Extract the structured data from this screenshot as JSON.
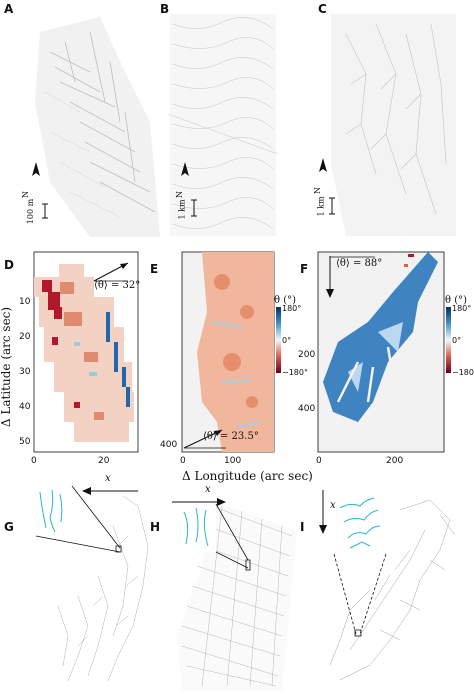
{
  "panels": {
    "A": {
      "label": "A",
      "scale": "100 m",
      "north": "N"
    },
    "B": {
      "label": "B",
      "scale": "1 km",
      "north": "N"
    },
    "C": {
      "label": "C",
      "scale": "1 km",
      "north": "N"
    },
    "D": {
      "label": "D",
      "theta": "⟨θ⟩ = 32°",
      "xticks": [
        "0",
        "20"
      ],
      "yticks": [
        "10",
        "20",
        "30",
        "40",
        "50"
      ]
    },
    "E": {
      "label": "E",
      "theta": "⟨θ⟩ = 23.5°",
      "xticks": [
        "0",
        "100"
      ],
      "yticks": [
        "400"
      ]
    },
    "F": {
      "label": "F",
      "theta": "⟨θ⟩ = 88°",
      "xticks": [
        "0",
        "200"
      ],
      "yticks": [
        "200",
        "400"
      ]
    },
    "G": {
      "label": "G",
      "axis": "x"
    },
    "H": {
      "label": "H",
      "axis": "x"
    },
    "I": {
      "label": "I",
      "axis": "x"
    }
  },
  "axes": {
    "ylabel": "Δ Latitude (arc sec)",
    "xlabel": "Δ Longitude (arc sec)"
  },
  "colorbar": {
    "title": "θ (°)",
    "ticks": [
      "180°",
      "0°",
      "−180°"
    ]
  }
}
